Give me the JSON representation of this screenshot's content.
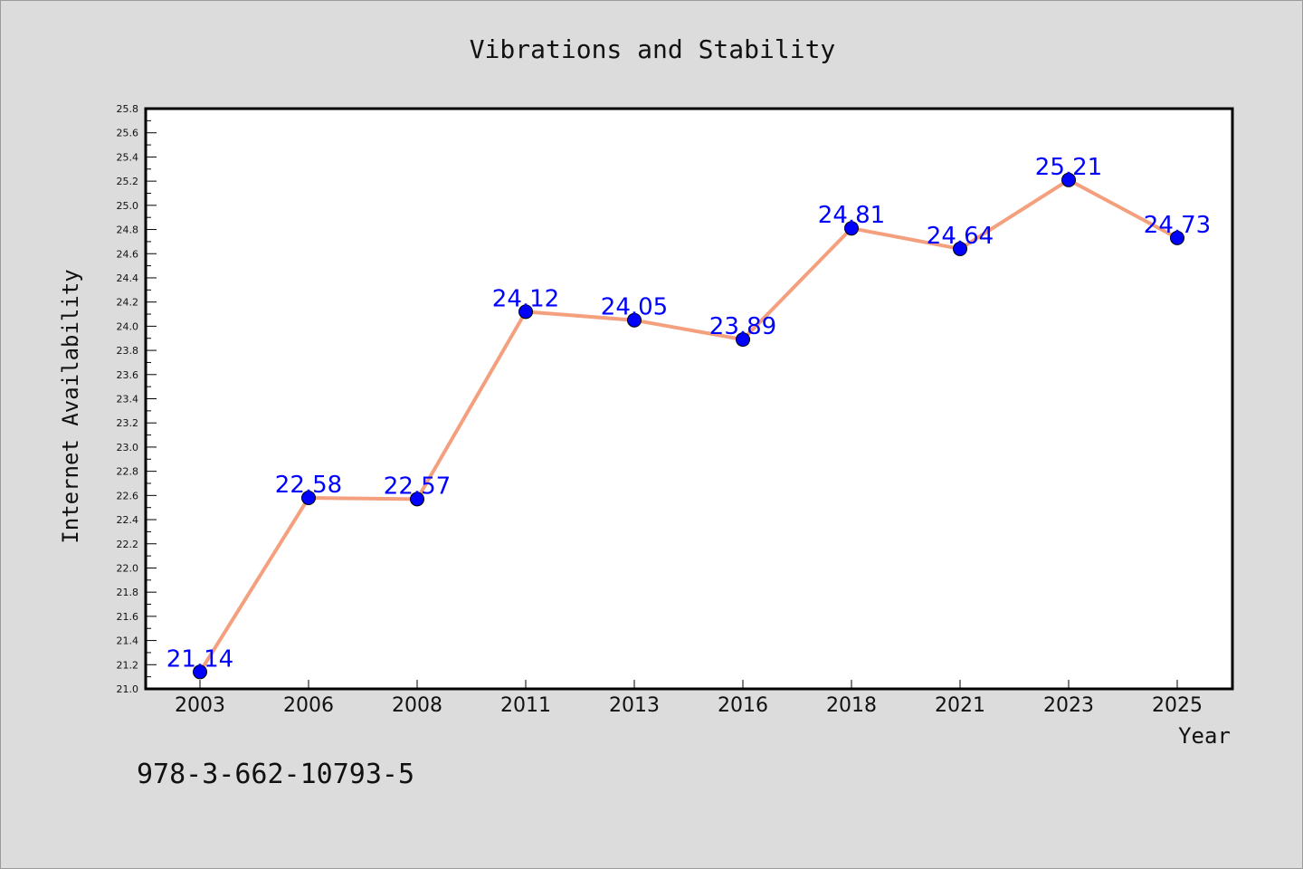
{
  "chart_data": {
    "type": "line",
    "title": "Vibrations and Stability",
    "xlabel": "Year",
    "ylabel": "Internet Availability",
    "categories": [
      "2003",
      "2006",
      "2008",
      "2011",
      "2013",
      "2016",
      "2018",
      "2021",
      "2023",
      "2025"
    ],
    "series": [
      {
        "values": [
          21.14,
          22.58,
          22.57,
          24.12,
          24.05,
          23.89,
          24.81,
          24.64,
          25.21,
          24.73
        ],
        "labels": [
          "21.14",
          "22.58",
          "22.57",
          "24.12",
          "24.05",
          "23.89",
          "24.81",
          "24.64",
          "25.21",
          "24.73"
        ],
        "line_color": "#f4a07e",
        "marker_color": "#0000ff"
      }
    ],
    "ylim": [
      21.0,
      25.8
    ],
    "yticks": [
      "21.0",
      "21.2",
      "21.4",
      "21.6",
      "21.8",
      "22.0",
      "22.2",
      "22.4",
      "22.6",
      "22.8",
      "23.0",
      "23.2",
      "23.4",
      "23.6",
      "23.8",
      "24.0",
      "24.2",
      "24.4",
      "24.6",
      "24.8",
      "25.0",
      "25.2",
      "25.4",
      "25.6",
      "25.8"
    ],
    "grid": false,
    "legend": "none",
    "label_color": "#0000ff",
    "background": "#dcdcdc",
    "plot_background": "#ffffff"
  },
  "caption": "978-3-662-10793-5"
}
